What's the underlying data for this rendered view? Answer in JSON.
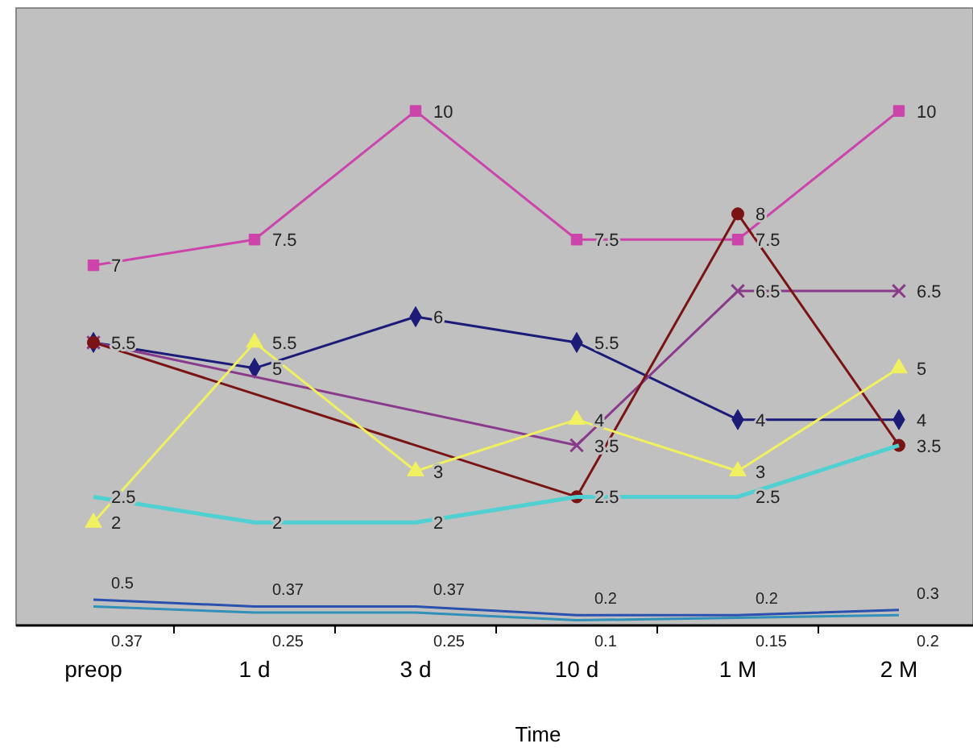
{
  "chart_data": {
    "type": "line",
    "xlabel": "Time",
    "categories": [
      "preop",
      "1 d",
      "3 d",
      "10 d",
      "1 M",
      "2 M"
    ],
    "ylim": [
      0,
      12
    ],
    "tick_labels": "x",
    "series": [
      {
        "color": "#cc44aa",
        "marker": "square",
        "values": [
          7,
          7.5,
          10,
          7.5,
          7.5,
          10
        ],
        "value_labels": [
          "7",
          "7.5",
          "10",
          "7.5",
          "7.5",
          "10"
        ]
      },
      {
        "color": "#1c1c78",
        "marker": "diamond",
        "values": [
          5.5,
          5,
          6,
          5.5,
          4,
          4
        ],
        "value_labels": [
          "5.5",
          "5",
          "6",
          "5.5",
          "4",
          "4"
        ]
      },
      {
        "color": "#8a3a8a",
        "marker": "cross",
        "values": [
          5.5,
          null,
          null,
          3.5,
          6.5,
          6.5
        ],
        "value_labels": [
          null,
          null,
          null,
          "3.5",
          "6.5",
          "6.5"
        ]
      },
      {
        "color": "#7a1414",
        "marker": "circle",
        "values": [
          5.5,
          null,
          null,
          2.5,
          8,
          3.5
        ],
        "value_labels": [
          null,
          null,
          null,
          null,
          "8",
          "3.5"
        ]
      },
      {
        "color": "#f0f060",
        "marker": "triangle",
        "values": [
          2,
          5.5,
          3,
          4,
          3,
          5
        ],
        "value_labels": [
          "2",
          "5.5",
          "3",
          "4",
          "3",
          "5"
        ]
      },
      {
        "color": "#50d0d0",
        "marker": "none",
        "values": [
          2.5,
          2,
          2,
          2.5,
          2.5,
          3.5
        ],
        "value_labels": [
          "2.5",
          "2",
          "2",
          "2.5",
          "2.5",
          null
        ]
      },
      {
        "color": "#2a50b0",
        "marker": "none",
        "values": [
          0.5,
          0.37,
          0.37,
          0.2,
          0.2,
          0.3
        ],
        "value_labels": [
          "0.5",
          "0.37",
          "0.37",
          "0.2",
          "0.2",
          "0.3"
        ]
      },
      {
        "color": "#3090b8",
        "marker": "none",
        "values": [
          0.37,
          0.25,
          0.25,
          0.1,
          0.15,
          0.2
        ],
        "value_labels": [
          "0.37",
          "0.25",
          "0.25",
          "0.1",
          "0.15",
          "0.2"
        ]
      }
    ]
  }
}
